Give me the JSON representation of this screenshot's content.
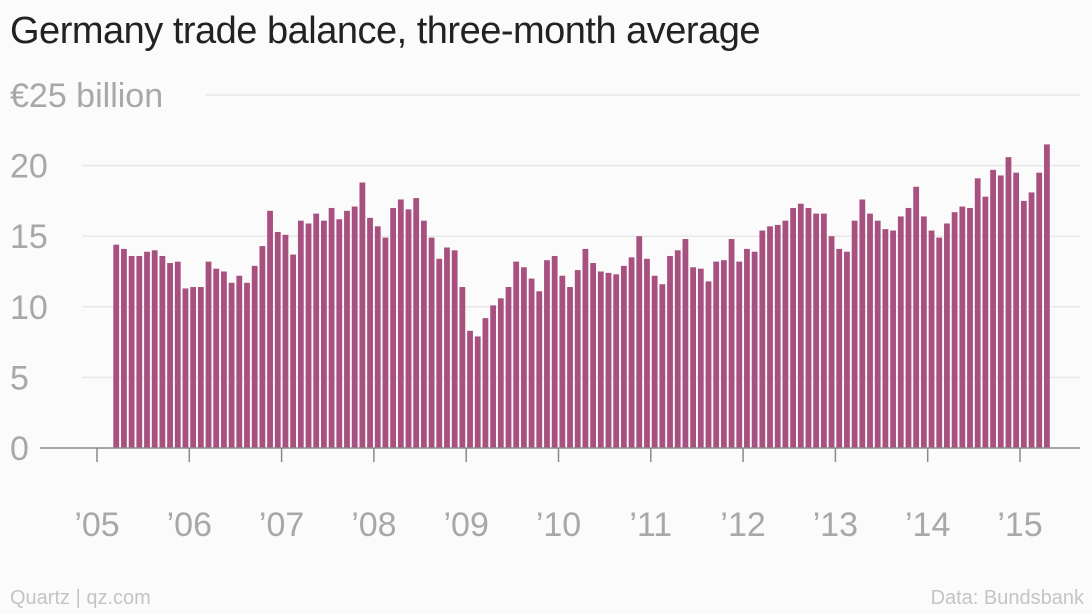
{
  "title": "Germany trade balance, three-month average",
  "footer": {
    "source_left": "Quartz | qz.com",
    "source_right": "Data: Bundsbank"
  },
  "colors": {
    "bar": "#a8507f",
    "grid": "#e8e8e8",
    "axis": "#8a8a8a",
    "tick_text": "#a8a8a8",
    "title_text": "#222222",
    "background": "#fbfbfb"
  },
  "chart_data": {
    "type": "bar",
    "title": "Germany trade balance, three-month average",
    "ylabel": "€ billion",
    "ylim": [
      0,
      25
    ],
    "y_ticks": [
      {
        "value": 0,
        "label": "0"
      },
      {
        "value": 5,
        "label": "5"
      },
      {
        "value": 10,
        "label": "10"
      },
      {
        "value": 15,
        "label": "15"
      },
      {
        "value": 20,
        "label": "20"
      },
      {
        "value": 25,
        "label": "€25 billion"
      }
    ],
    "x_ticks": [
      "’05",
      "’06",
      "’07",
      "’08",
      "’09",
      "’10",
      "’11",
      "’12",
      "’13",
      "’14",
      "’15"
    ],
    "x_range": [
      "2005-01",
      "2015-06"
    ],
    "grid": true,
    "start_period": "2005-03",
    "frequency": "monthly",
    "values": [
      14.4,
      14.1,
      13.6,
      13.6,
      13.9,
      14.0,
      13.6,
      13.1,
      13.2,
      11.3,
      11.4,
      11.4,
      13.2,
      12.7,
      12.5,
      11.7,
      12.2,
      11.7,
      12.9,
      14.3,
      16.8,
      15.3,
      15.1,
      13.7,
      16.1,
      15.9,
      16.6,
      16.1,
      17.0,
      16.2,
      16.8,
      17.1,
      18.8,
      16.3,
      15.7,
      14.9,
      17.0,
      17.6,
      16.9,
      17.7,
      16.1,
      14.9,
      13.4,
      14.2,
      14.0,
      11.4,
      8.3,
      7.9,
      9.2,
      10.1,
      10.6,
      11.4,
      13.2,
      12.8,
      12.0,
      11.1,
      13.3,
      13.6,
      12.2,
      11.4,
      12.6,
      14.1,
      13.1,
      12.5,
      12.4,
      12.3,
      12.9,
      13.5,
      15.0,
      13.4,
      12.2,
      11.6,
      13.6,
      14.0,
      14.8,
      12.8,
      12.7,
      11.8,
      13.2,
      13.3,
      14.8,
      13.2,
      14.1,
      13.9,
      15.4,
      15.7,
      15.8,
      16.1,
      17.0,
      17.3,
      17.0,
      16.6,
      16.6,
      15.0,
      14.1,
      13.9,
      16.1,
      17.6,
      16.6,
      16.1,
      15.5,
      15.4,
      16.4,
      17.0,
      18.5,
      16.4,
      15.4,
      14.9,
      15.9,
      16.7,
      17.1,
      17.0,
      19.1,
      17.8,
      19.7,
      19.3,
      20.6,
      19.5,
      17.5,
      18.1,
      19.5,
      21.5
    ]
  }
}
